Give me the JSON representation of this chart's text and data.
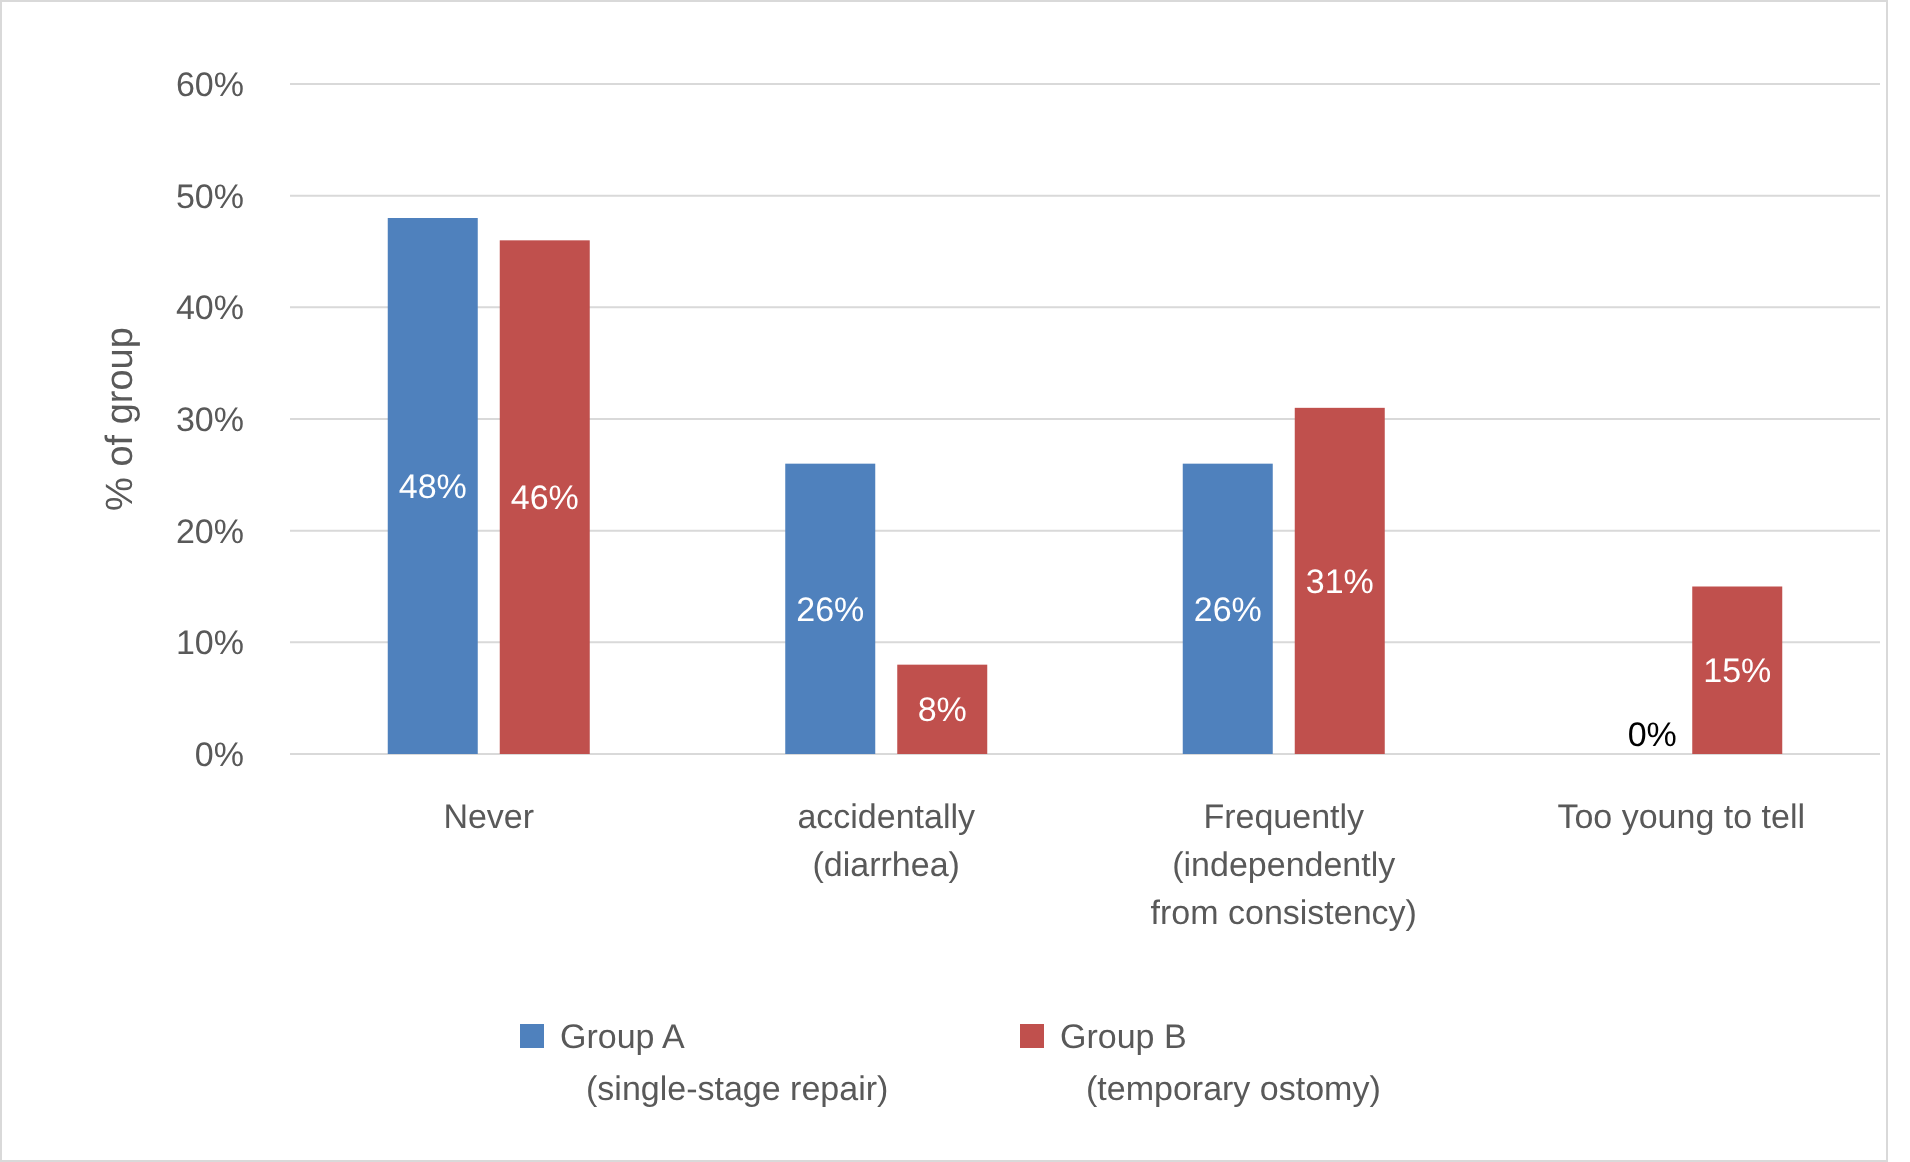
{
  "chart_data": {
    "type": "bar",
    "ylabel": "% of group",
    "categories": [
      "Never",
      "accidentally (diarrhea)",
      "Frequently (independently from consistency)",
      "Too young to tell"
    ],
    "series": [
      {
        "name": "Group A (single-stage repair)",
        "color": "#4f81bd",
        "values": [
          48,
          26,
          26,
          0
        ],
        "value_labels": [
          "48%",
          "26%",
          "26%",
          "0%"
        ]
      },
      {
        "name": "Group B (temporary ostomy)",
        "color": "#c0504d",
        "values": [
          46,
          8,
          31,
          15
        ],
        "value_labels": [
          "46%",
          "8%",
          "31%",
          "15%"
        ]
      }
    ],
    "ylim": [
      0,
      60
    ],
    "yticks": [
      {
        "value": 0,
        "label": "0%"
      },
      {
        "value": 10,
        "label": "10%"
      },
      {
        "value": 20,
        "label": "20%"
      },
      {
        "value": 30,
        "label": "30%"
      },
      {
        "value": 40,
        "label": "40%"
      },
      {
        "value": 50,
        "label": "50%"
      },
      {
        "value": 60,
        "label": "60%"
      }
    ],
    "grid": "y",
    "legend": "bottom"
  }
}
